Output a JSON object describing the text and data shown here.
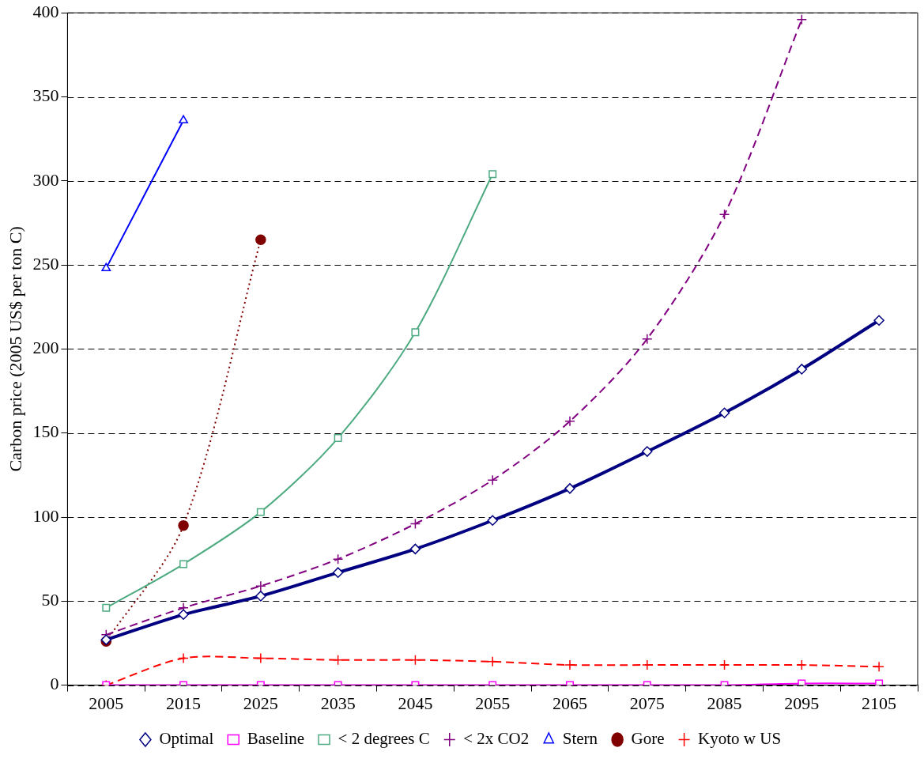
{
  "chart_data": {
    "type": "line",
    "ylabel": "Carbon price (2005 US$ per ton C)",
    "categories": [
      "2005",
      "2015",
      "2025",
      "2035",
      "2045",
      "2055",
      "2065",
      "2075",
      "2085",
      "2095",
      "2105"
    ],
    "ylim": [
      0,
      400
    ],
    "yticks": [
      0,
      50,
      100,
      150,
      200,
      250,
      300,
      350,
      400
    ],
    "grid": "y",
    "legend": "bottom",
    "series": [
      {
        "name": "Optimal",
        "color": "#000080",
        "marker": "diamond",
        "line_style": "solid",
        "values": [
          27,
          42,
          53,
          67,
          81,
          98,
          117,
          139,
          162,
          188,
          217
        ]
      },
      {
        "name": "Baseline",
        "color": "#ff00ff",
        "marker": "square",
        "line_style": "solid",
        "values": [
          0,
          0,
          0,
          0,
          0,
          0,
          0,
          0,
          0,
          1,
          1
        ]
      },
      {
        "name": "< 2 degrees C",
        "color": "#4daa80",
        "marker": "square",
        "line_style": "solid",
        "values": [
          46,
          72,
          103,
          147,
          210,
          304,
          null,
          null,
          null,
          null,
          null
        ]
      },
      {
        "name": "< 2x CO2",
        "color": "#800080",
        "marker": "cross",
        "line_style": "dashed",
        "values": [
          30,
          46,
          59,
          75,
          96,
          122,
          157,
          206,
          280,
          396,
          null
        ]
      },
      {
        "name": "Stern",
        "color": "#0000ff",
        "marker": "triangle",
        "line_style": "solid",
        "values": [
          248,
          336,
          null,
          null,
          null,
          null,
          null,
          null,
          null,
          null,
          null
        ]
      },
      {
        "name": "Gore",
        "color": "#800000",
        "marker": "circle",
        "line_style": "dotted",
        "values": [
          26,
          95,
          265,
          null,
          null,
          null,
          null,
          null,
          null,
          null,
          null
        ]
      },
      {
        "name": "Kyoto w US",
        "color": "#ff0000",
        "marker": "cross",
        "line_style": "dashed",
        "values": [
          0,
          16,
          16,
          15,
          15,
          14,
          12,
          12,
          12,
          12,
          11
        ]
      }
    ]
  }
}
